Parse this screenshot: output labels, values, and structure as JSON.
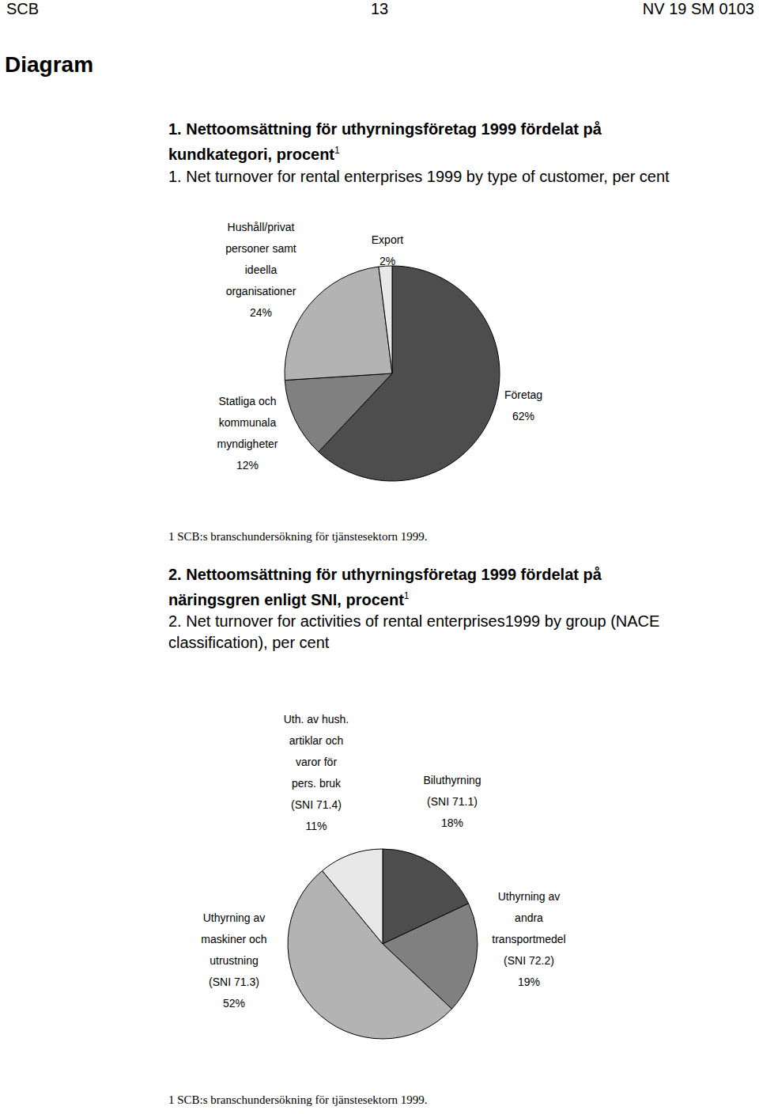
{
  "header": {
    "left": "SCB",
    "page": "13",
    "right": "NV 19 SM 0103"
  },
  "heading": "Diagram",
  "chart_data": [
    {
      "type": "pie",
      "title": "1. Nettoomsättning för uthyrningsföretag 1999 fördelat på kundkategori, procent",
      "title_note": "1",
      "subtitle": "1. Net turnover for rental enterprises 1999 by type of customer, per cent",
      "categories": [
        [
          "Företag"
        ],
        [
          "Statliga och",
          "kommunala",
          "myndigheter"
        ],
        [
          "Hushåll/privat",
          "personer samt",
          "ideella",
          "organisationer"
        ],
        [
          "Export"
        ]
      ],
      "values": [
        62,
        12,
        24,
        2
      ],
      "value_labels": [
        "62%",
        "12%",
        "24%",
        "2%"
      ],
      "colors": [
        "#4d4d4d",
        "#808080",
        "#b3b3b3",
        "#e8e8e8"
      ],
      "footnote": "1 SCB:s branschundersökning för tjänstesektorn 1999."
    },
    {
      "type": "pie",
      "title": "2. Nettoomsättning för uthyrningsföretag 1999 fördelat på näringsgren enligt SNI, procent",
      "title_note": "1",
      "subtitle": "2. Net turnover for activities of rental enterprises1999 by group (NACE classification), per cent",
      "categories": [
        [
          "Biluthyrning",
          "(SNI 71.1)"
        ],
        [
          "Uthyrning av",
          "andra",
          "transportmedel",
          "(SNI 72.2)"
        ],
        [
          "Uthyrning av",
          "maskiner och",
          "utrustning",
          "(SNI 71.3)"
        ],
        [
          "Uth. av hush.",
          "artiklar och",
          "varor för",
          "pers. bruk",
          "(SNI 71.4)"
        ]
      ],
      "values": [
        18,
        19,
        52,
        11
      ],
      "value_labels": [
        "18%",
        "19%",
        "52%",
        "11%"
      ],
      "colors": [
        "#4d4d4d",
        "#808080",
        "#b3b3b3",
        "#e8e8e8"
      ],
      "footnote": "1 SCB:s branschundersökning för tjänstesektorn 1999."
    }
  ]
}
